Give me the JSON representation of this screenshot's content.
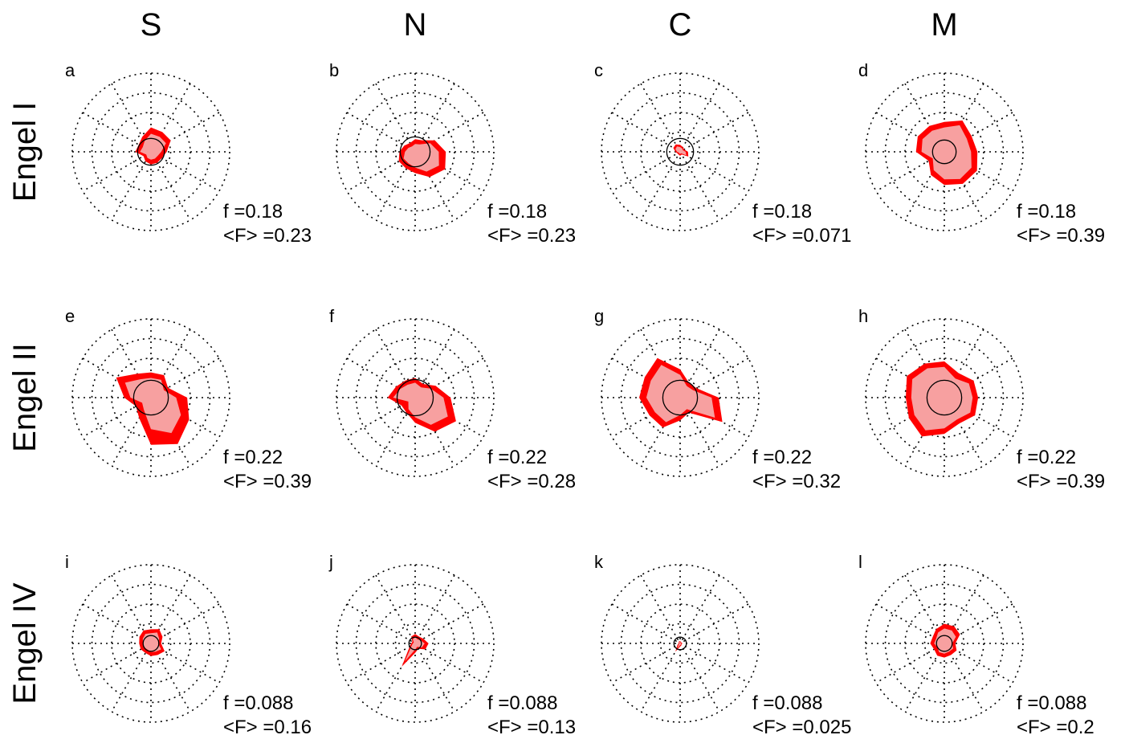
{
  "colors": {
    "outer": "#ff0000",
    "inner": "#f7a0a0",
    "axis": "#000000"
  },
  "chart_data": {
    "type": "polar",
    "columns": [
      "S",
      "N",
      "C",
      "M"
    ],
    "rows": [
      "Engel I",
      "Engel II",
      "Engel IV"
    ],
    "grid": {
      "rings": 4,
      "spokes": 12,
      "style": "dotted"
    },
    "panels": [
      {
        "letter": "a",
        "f": "f =0.18",
        "F": "<F> =0.23",
        "outer": [
          0.31,
          0.29,
          0.29,
          0.2,
          0.16,
          0.16,
          0.16,
          0.14,
          0.11,
          0.2,
          0.18,
          0.22
        ],
        "inner": [
          0.23,
          0.22,
          0.22,
          0.13,
          0.1,
          0.1,
          0.1,
          0.09,
          0.07,
          0.14,
          0.12,
          0.16
        ],
        "circle": 0.17
      },
      {
        "letter": "b",
        "f": "f =0.18",
        "F": "<F> =0.23",
        "outer": [
          0.16,
          0.17,
          0.29,
          0.39,
          0.44,
          0.37,
          0.27,
          0.24,
          0.24,
          0.2,
          0.16,
          0.13
        ],
        "inner": [
          0.1,
          0.11,
          0.22,
          0.3,
          0.35,
          0.29,
          0.2,
          0.17,
          0.17,
          0.13,
          0.1,
          0.08
        ],
        "circle": 0.19
      },
      {
        "letter": "c",
        "f": "f =0.18",
        "F": "<F> =0.071",
        "outer": [
          0.09,
          0.07,
          0.06,
          0.1,
          0.12,
          0.04,
          0.05,
          0.04,
          0.04,
          0.06,
          0.1,
          0.11
        ],
        "inner": [
          0.06,
          0.05,
          0.04,
          0.07,
          0.09,
          0.02,
          0.03,
          0.02,
          0.02,
          0.04,
          0.07,
          0.08
        ],
        "circle": 0.17
      },
      {
        "letter": "d",
        "f": "f =0.18",
        "F": "<F> =0.39",
        "outer": [
          0.38,
          0.46,
          0.4,
          0.42,
          0.48,
          0.47,
          0.42,
          0.34,
          0.23,
          0.36,
          0.39,
          0.38
        ],
        "inner": [
          0.31,
          0.39,
          0.33,
          0.34,
          0.4,
          0.4,
          0.35,
          0.27,
          0.17,
          0.29,
          0.32,
          0.31
        ],
        "circle": 0.15
      },
      {
        "letter": "e",
        "f": "f =0.22",
        "F": "<F> =0.39",
        "outer": [
          0.32,
          0.33,
          0.25,
          0.46,
          0.56,
          0.68,
          0.6,
          0.3,
          0.22,
          0.34,
          0.51,
          0.35
        ],
        "inner": [
          0.25,
          0.26,
          0.19,
          0.32,
          0.44,
          0.52,
          0.4,
          0.18,
          0.13,
          0.26,
          0.38,
          0.27
        ],
        "circle": 0.22
      },
      {
        "letter": "f",
        "f": "f =0.22",
        "F": "<F> =0.28",
        "outer": [
          0.25,
          0.2,
          0.3,
          0.45,
          0.6,
          0.5,
          0.32,
          0.22,
          0.2,
          0.35,
          0.28,
          0.25
        ],
        "inner": [
          0.19,
          0.15,
          0.23,
          0.36,
          0.48,
          0.4,
          0.25,
          0.17,
          0.1,
          0.28,
          0.22,
          0.19
        ],
        "circle": 0.23
      },
      {
        "letter": "g",
        "f": "f =0.22",
        "F": "<F> =0.32",
        "outer": [
          0.36,
          0.22,
          0.24,
          0.49,
          0.62,
          0.22,
          0.29,
          0.44,
          0.45,
          0.52,
          0.52,
          0.58
        ],
        "inner": [
          0.29,
          0.17,
          0.19,
          0.4,
          0.51,
          0.17,
          0.22,
          0.36,
          0.37,
          0.43,
          0.43,
          0.48
        ],
        "circle": 0.22
      },
      {
        "letter": "h",
        "f": "f =0.22",
        "F": "<F> =0.39",
        "outer": [
          0.46,
          0.36,
          0.43,
          0.43,
          0.45,
          0.38,
          0.46,
          0.57,
          0.52,
          0.49,
          0.55,
          0.5
        ],
        "inner": [
          0.39,
          0.28,
          0.36,
          0.36,
          0.38,
          0.32,
          0.39,
          0.48,
          0.44,
          0.42,
          0.47,
          0.43
        ],
        "circle": 0.22
      },
      {
        "letter": "i",
        "f": "f =0.088",
        "F": "<F> =0.16",
        "outer": [
          0.18,
          0.21,
          0.17,
          0.13,
          0.2,
          0.17,
          0.16,
          0.14,
          0.15,
          0.15,
          0.17,
          0.19
        ],
        "inner": [
          0.13,
          0.16,
          0.12,
          0.09,
          0.15,
          0.12,
          0.11,
          0.09,
          0.1,
          0.1,
          0.12,
          0.14
        ],
        "circle": 0.1
      },
      {
        "letter": "j",
        "f": "f =0.088",
        "F": "<F> =0.13",
        "outer": [
          0.12,
          0.1,
          0.12,
          0.17,
          0.15,
          0.08,
          0.12,
          0.34,
          0.08,
          0.05,
          0.04,
          0.1
        ],
        "inner": [
          0.08,
          0.06,
          0.08,
          0.12,
          0.1,
          0.05,
          0.08,
          0.26,
          0.05,
          0.03,
          0.02,
          0.06
        ],
        "circle": 0.08
      },
      {
        "letter": "k",
        "f": "f =0.088",
        "F": "<F> =0.025",
        "outer": [
          0.03,
          0.02,
          0.02,
          0.03,
          0.02,
          0.03,
          0.04,
          0.12,
          0.04,
          0.02,
          0.02,
          0.03
        ],
        "inner": [
          0.02,
          0.01,
          0.01,
          0.02,
          0.01,
          0.02,
          0.02,
          0.08,
          0.02,
          0.01,
          0.01,
          0.02
        ],
        "circle": 0.08
      },
      {
        "letter": "l",
        "f": "f =0.088",
        "F": "<F> =0.2",
        "outer": [
          0.25,
          0.25,
          0.23,
          0.14,
          0.18,
          0.17,
          0.18,
          0.18,
          0.15,
          0.18,
          0.17,
          0.21
        ],
        "inner": [
          0.19,
          0.19,
          0.17,
          0.1,
          0.13,
          0.12,
          0.13,
          0.13,
          0.1,
          0.13,
          0.12,
          0.16
        ],
        "circle": 0.1
      }
    ]
  }
}
